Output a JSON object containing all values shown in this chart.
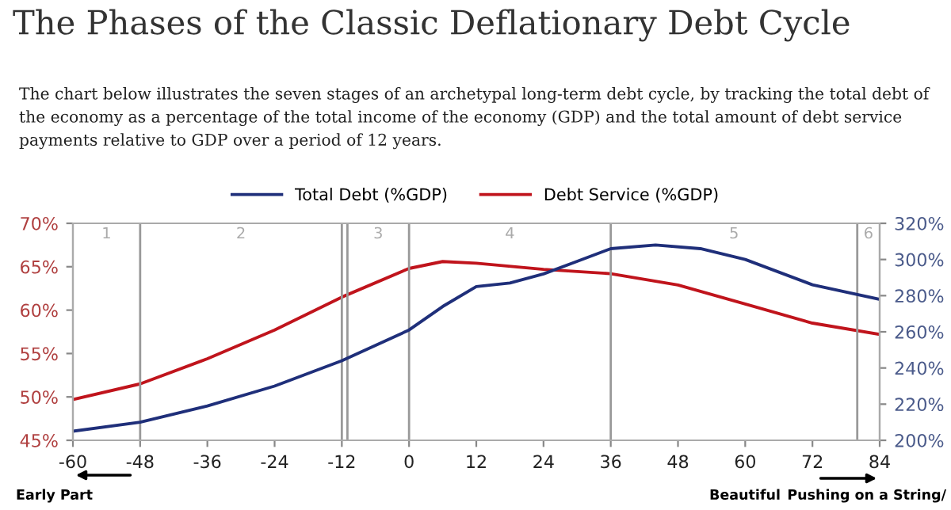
{
  "chart_data": {
    "type": "line",
    "title": "The Phases of the Classic Deflationary Debt Cycle",
    "subtitle": "The chart below illustrates the seven stages of an archetypal long-term debt cycle, by tracking the total debt of the economy as a percentage of the total income of the economy (GDP) and the total amount of debt service payments relative to GDP over a period of 12 years.",
    "x": [
      -60,
      -48,
      -36,
      -24,
      -12,
      0,
      6,
      12,
      18,
      24,
      30,
      36,
      44,
      52,
      60,
      72,
      84
    ],
    "series": [
      {
        "name": "Total Debt (%GDP)",
        "color": "#1f2f7a",
        "axis": "y2",
        "values": [
          205,
          210,
          219,
          230,
          244,
          261,
          274,
          285,
          287,
          292,
          299,
          306,
          308,
          306,
          300,
          286,
          278
        ]
      },
      {
        "name": "Debt Service (%GDP)",
        "color": "#c0141c",
        "x": [
          -60,
          -48,
          -36,
          -24,
          -12,
          0,
          6,
          12,
          24,
          36,
          48,
          60,
          72,
          84
        ],
        "values": [
          49.7,
          51.5,
          54.4,
          57.7,
          61.5,
          64.8,
          65.6,
          65.4,
          64.7,
          64.2,
          62.9,
          60.7,
          58.5,
          57.2
        ]
      }
    ],
    "xlim": [
      -60,
      84
    ],
    "xticks": [
      -60,
      -48,
      -36,
      -24,
      -12,
      0,
      12,
      24,
      36,
      48,
      60,
      72,
      84
    ],
    "ylim": [
      45,
      70
    ],
    "yticks": [
      {
        "value": 45,
        "label": "45%"
      },
      {
        "value": 50,
        "label": "50%"
      },
      {
        "value": 55,
        "label": "55%"
      },
      {
        "value": 60,
        "label": "60%"
      },
      {
        "value": 65,
        "label": "65%"
      },
      {
        "value": 70,
        "label": "70%"
      }
    ],
    "y2lim": [
      200,
      320
    ],
    "y2ticks": [
      {
        "value": 200,
        "label": "200%"
      },
      {
        "value": 220,
        "label": "220%"
      },
      {
        "value": 240,
        "label": "240%"
      },
      {
        "value": 260,
        "label": "260%"
      },
      {
        "value": 280,
        "label": "280%"
      },
      {
        "value": 300,
        "label": "300%"
      },
      {
        "value": 320,
        "label": "320%"
      }
    ],
    "ref_lines": [
      {
        "axis": "x",
        "value": -48,
        "color": "#999999"
      },
      {
        "axis": "x",
        "value": -12,
        "color": "#999999"
      },
      {
        "axis": "x",
        "value": -11,
        "color": "#999999"
      },
      {
        "axis": "x",
        "value": 0,
        "color": "#999999"
      },
      {
        "axis": "x",
        "value": 36,
        "color": "#999999"
      },
      {
        "axis": "x",
        "value": 80,
        "color": "#999999"
      }
    ],
    "annotations": [
      "1",
      "2",
      "3",
      "4",
      "5",
      "6",
      "Early Part",
      "Beautiful",
      "Pushing on a String/"
    ],
    "legend": "top",
    "grid": false,
    "marker": "none",
    "line_style": "solid"
  }
}
